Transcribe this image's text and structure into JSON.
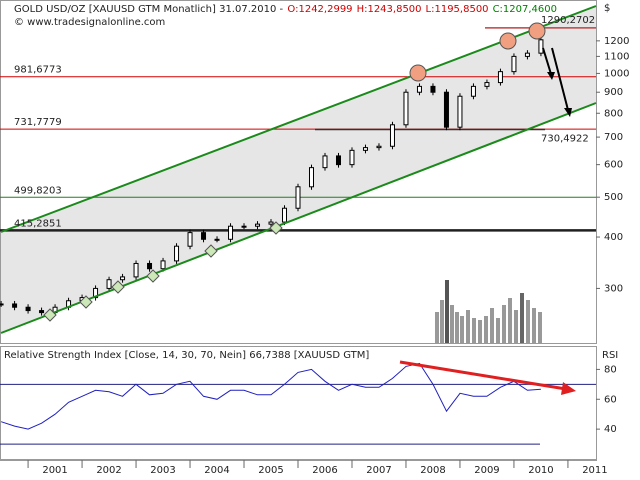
{
  "chart_data": [
    {
      "type": "candlestick",
      "title": "GOLD USD/OZ [XAUUSD GTM Monatlich] 31.07.2010 -",
      "ohlc": [
        {
          "label": "O:1242,2999",
          "color": "#d00000"
        },
        {
          "label": "H:1243,8500",
          "color": "#d00000"
        },
        {
          "label": "L:1195,8500",
          "color": "#d00000"
        },
        {
          "label": "C:1207,4600",
          "color": "#008000"
        }
      ],
      "credit": "© www.tradesignalonline.com",
      "y_axis_label": "$",
      "log_scale": true,
      "xlim": [
        2000.48,
        2011.52
      ],
      "ylim": [
        221,
        1500
      ],
      "yticks": [
        300,
        400,
        500,
        600,
        700,
        800,
        900,
        1000,
        1100,
        1200
      ],
      "levels": [
        {
          "value": 981.6773,
          "label": "981,6773",
          "color": "#d00000"
        },
        {
          "value": 731.7779,
          "label": "731,7779",
          "color": "#d00000"
        },
        {
          "value": 499.8203,
          "label": "499,8203",
          "color": "#208020"
        },
        {
          "value": 415.2851,
          "label": "415,2851",
          "color": "#202020"
        }
      ],
      "annotations": [
        {
          "value": 1290.2702,
          "label": "1290,2702"
        },
        {
          "value": 730.4922,
          "label": "730,4922"
        }
      ],
      "x": [
        2000.5,
        2000.75,
        2001,
        2001.25,
        2001.5,
        2001.75,
        2002,
        2002.25,
        2002.5,
        2002.75,
        2003,
        2003.25,
        2003.5,
        2003.75,
        2004,
        2004.25,
        2004.5,
        2004.75,
        2005,
        2005.25,
        2005.5,
        2005.75,
        2006,
        2006.25,
        2006.5,
        2006.75,
        2007,
        2007.25,
        2007.5,
        2007.75,
        2008,
        2008.25,
        2008.5,
        2008.75,
        2009,
        2009.25,
        2009.5,
        2009.75,
        2010,
        2010.25,
        2010.5
      ],
      "close": [
        275,
        270,
        265,
        262,
        270,
        280,
        285,
        300,
        315,
        320,
        345,
        335,
        350,
        380,
        410,
        395,
        395,
        425,
        425,
        430,
        435,
        470,
        530,
        590,
        630,
        600,
        650,
        660,
        665,
        750,
        900,
        930,
        900,
        740,
        880,
        930,
        950,
        1010,
        1100,
        1120,
        1207
      ]
    },
    {
      "type": "line",
      "title": "Relative Strength Index [Close, 14, 30, 70, Nein] 66,7388 [XAUUSD GTM]",
      "y_axis_label": "RSI",
      "ylim": [
        20,
        95
      ],
      "yticks": [
        40,
        60,
        80
      ],
      "bands": [
        70,
        30
      ],
      "xlim": [
        2000.48,
        2011.52
      ],
      "xticks": [
        2001,
        2002,
        2003,
        2004,
        2005,
        2006,
        2007,
        2008,
        2009,
        2010,
        2011
      ],
      "x": [
        2000.5,
        2000.75,
        2001,
        2001.25,
        2001.5,
        2001.75,
        2002,
        2002.25,
        2002.5,
        2002.75,
        2003,
        2003.25,
        2003.5,
        2003.75,
        2004,
        2004.25,
        2004.5,
        2004.75,
        2005,
        2005.25,
        2005.5,
        2005.75,
        2006,
        2006.25,
        2006.5,
        2006.75,
        2007,
        2007.25,
        2007.5,
        2007.75,
        2008,
        2008.25,
        2008.5,
        2008.75,
        2009,
        2009.25,
        2009.5,
        2009.75,
        2010,
        2010.25,
        2010.5
      ],
      "values": [
        45,
        42,
        40,
        44,
        50,
        58,
        62,
        66,
        65,
        62,
        70,
        63,
        64,
        70,
        72,
        62,
        60,
        66,
        66,
        63,
        63,
        70,
        78,
        80,
        72,
        66,
        70,
        68,
        68,
        74,
        82,
        84,
        70,
        52,
        64,
        62,
        62,
        68,
        72,
        66,
        66.7388
      ],
      "color": "#2020c0"
    }
  ]
}
